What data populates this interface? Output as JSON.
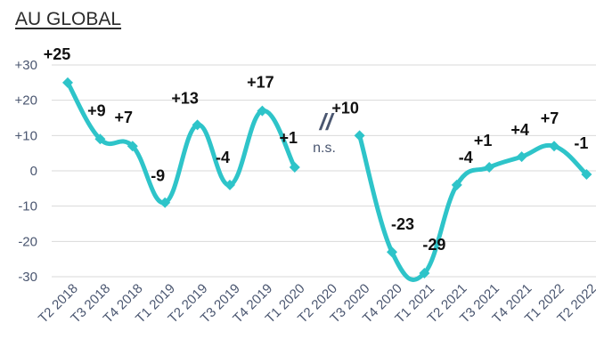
{
  "chart_data": {
    "type": "line",
    "title": "AU GLOBAL",
    "categories": [
      "T2 2018",
      "T3 2018",
      "T4 2018",
      "T1 2019",
      "T2 2019",
      "T3 2019",
      "T4 2019",
      "T1 2020",
      "T2 2020",
      "T3 2020",
      "T4 2020",
      "T1 2021",
      "T2 2021",
      "T3 2021",
      "T4 2021",
      "T1 2022",
      "T2 2022"
    ],
    "series": [
      {
        "values": [
          25,
          9,
          7,
          -9,
          13,
          -4,
          17,
          1,
          null,
          10,
          -23,
          -29,
          -4,
          1,
          4,
          7,
          -1
        ],
        "labels": [
          "+25",
          "+9",
          "+7",
          "-9",
          "+13",
          "-4",
          "+17",
          "+1",
          "",
          "+10",
          "-23",
          "-29",
          "-4",
          "+1",
          "+4",
          "+7",
          "-1"
        ]
      }
    ],
    "y_ticks": [
      30,
      20,
      10,
      0,
      -10,
      -20,
      -30
    ],
    "y_tick_labels": [
      "+30",
      "+20",
      "+10",
      "0",
      "-10",
      "-20",
      "-30"
    ],
    "ylim": [
      -30,
      30
    ],
    "break_mark": "//",
    "break_note": "n.s.",
    "line_color": "#2ec4c9",
    "grid": true
  }
}
